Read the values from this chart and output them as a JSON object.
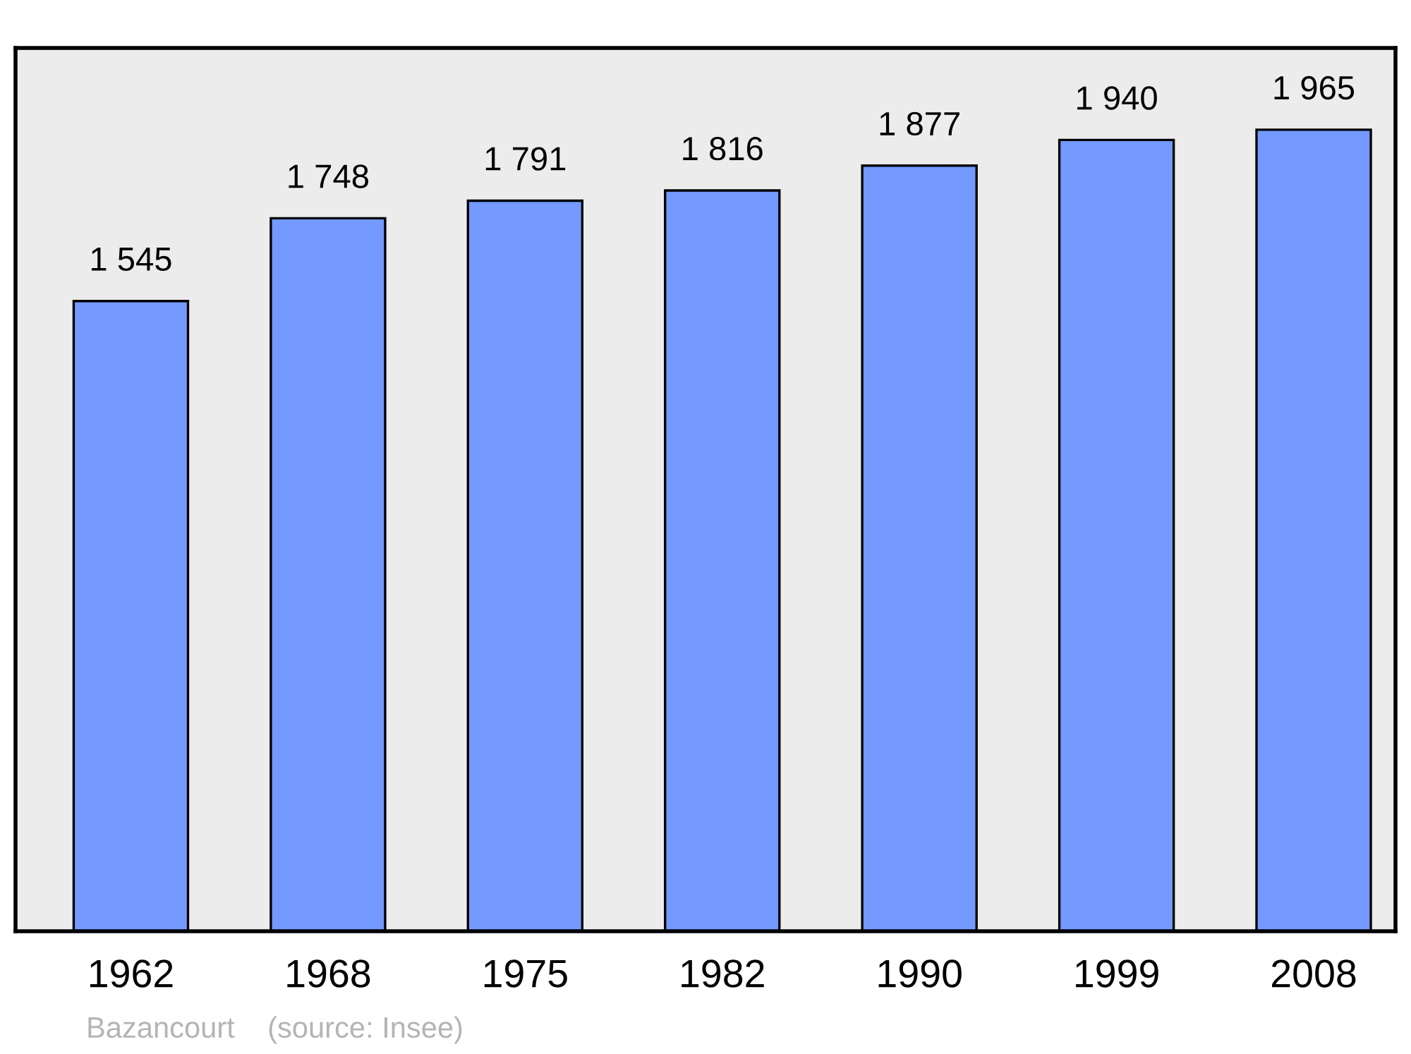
{
  "chart_data": {
    "type": "bar",
    "categories": [
      "1962",
      "1968",
      "1975",
      "1982",
      "1990",
      "1999",
      "2008"
    ],
    "values": [
      1545,
      1748,
      1791,
      1816,
      1877,
      1940,
      1965
    ],
    "value_labels": [
      "1 545",
      "1 748",
      "1 791",
      "1 816",
      "1 877",
      "1 940",
      "1 965"
    ],
    "color": "#7499ff",
    "grid": false,
    "legend": false,
    "annotations": [
      "Bazancourt    (source: Insee)"
    ]
  }
}
